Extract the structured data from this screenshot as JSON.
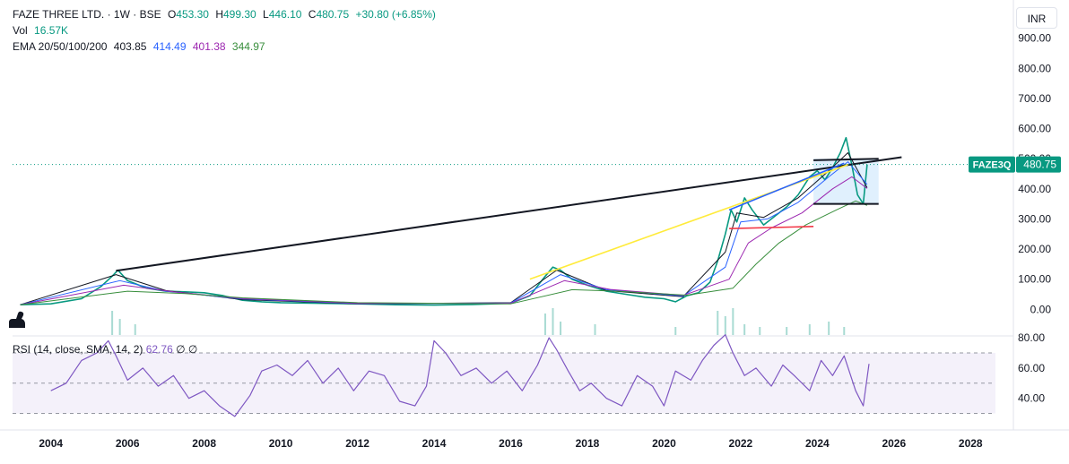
{
  "header": {
    "symbol_title": "FAZE THREE LTD. · 1W · BSE",
    "open_label": "O",
    "open": "453.30",
    "high_label": "H",
    "high": "499.30",
    "low_label": "L",
    "low": "446.10",
    "close_label": "C",
    "close": "480.75",
    "change": "+30.80 (+6.85%)",
    "vol_label": "Vol",
    "vol": "16.57K",
    "ema_label": "EMA 20/50/100/200",
    "ema_values": [
      "403.85",
      "414.49",
      "401.38",
      "344.97"
    ],
    "ema_colors": [
      "#131722",
      "#2962ff",
      "#9c27b0",
      "#388e3c"
    ]
  },
  "currency_button": "INR",
  "price_tag": {
    "symbol": "FAZE3Q",
    "value": "480.75",
    "color": "#089981"
  },
  "rsi_legend": {
    "label": "RSI (14, close, SMA, 14, 2)",
    "value": "62.76",
    "extra1": "∅",
    "extra2": "∅"
  },
  "colors": {
    "up": "#089981",
    "down": "#f23645",
    "rsi": "#7e57c2",
    "rsi_band": "#ede7f6",
    "trend_black": "#131722",
    "trend_yellow": "#ffeb3b",
    "trend_blue": "#2962ff",
    "trend_red": "#f23645",
    "range_fill": "#bbdefb"
  },
  "chart_data": [
    {
      "type": "line",
      "title": "FAZE THREE LTD. · 1W · BSE",
      "y_axis_labels": [
        "900.00",
        "800.00",
        "700.00",
        "600.00",
        "500.00",
        "400.00",
        "300.00",
        "200.00",
        "100.00",
        "0.00"
      ],
      "ylim": [
        -20,
        920
      ],
      "x_axis_labels": [
        "2004",
        "2006",
        "2008",
        "2010",
        "2012",
        "2014",
        "2016",
        "2018",
        "2020",
        "2022",
        "2024",
        "2026",
        "2028"
      ],
      "xlim": [
        2003.0,
        2029.0
      ],
      "series": [
        {
          "key": "close",
          "x": [
            2003.2,
            2004.0,
            2004.8,
            2005.3,
            2005.6,
            2005.75,
            2006.0,
            2006.5,
            2007.0,
            2007.5,
            2008.0,
            2008.5,
            2009.0,
            2009.5,
            2010.0,
            2011.0,
            2012.0,
            2013.0,
            2014.0,
            2015.0,
            2016.0,
            2016.5,
            2016.9,
            2017.1,
            2017.3,
            2017.6,
            2018.0,
            2018.5,
            2019.0,
            2019.5,
            2020.0,
            2020.3,
            2020.6,
            2020.9,
            2021.2,
            2021.4,
            2021.6,
            2021.75,
            2021.9,
            2022.1,
            2022.3,
            2022.6,
            2022.9,
            2023.2,
            2023.5,
            2023.8,
            2024.0,
            2024.2,
            2024.4,
            2024.6,
            2024.75,
            2024.9,
            2025.05,
            2025.2,
            2025.3
          ],
          "y": [
            15,
            18,
            35,
            75,
            110,
            130,
            95,
            70,
            60,
            58,
            55,
            45,
            30,
            25,
            22,
            20,
            18,
            15,
            14,
            16,
            20,
            45,
            110,
            140,
            130,
            100,
            80,
            60,
            50,
            40,
            35,
            25,
            45,
            55,
            90,
            160,
            250,
            330,
            290,
            370,
            330,
            280,
            310,
            340,
            380,
            440,
            460,
            430,
            470,
            520,
            570,
            480,
            380,
            350,
            480.75
          ]
        },
        {
          "key": "ema_20",
          "x": [
            2003.2,
            2005.7,
            2007,
            2009,
            2012,
            2016,
            2017.2,
            2018.5,
            2020.5,
            2021.6,
            2021.9,
            2022.6,
            2023.5,
            2024.3,
            2024.8,
            2025.3
          ],
          "y": [
            15,
            115,
            62,
            32,
            18,
            22,
            130,
            62,
            42,
            190,
            320,
            305,
            370,
            460,
            520,
            403.85
          ]
        },
        {
          "key": "ema_50",
          "x": [
            2003.2,
            2005.8,
            2007,
            2009,
            2012,
            2016,
            2017.3,
            2018.5,
            2020.5,
            2021.6,
            2022.0,
            2022.7,
            2023.5,
            2024.3,
            2024.8,
            2025.3
          ],
          "y": [
            15,
            95,
            60,
            34,
            19,
            21,
            115,
            65,
            44,
            140,
            290,
            300,
            355,
            440,
            490,
            414.49
          ]
        },
        {
          "key": "ema_100",
          "x": [
            2003.2,
            2005.9,
            2007.2,
            2009,
            2012,
            2016,
            2017.4,
            2018.6,
            2020.5,
            2021.7,
            2022.2,
            2022.8,
            2023.6,
            2024.4,
            2024.9,
            2025.3
          ],
          "y": [
            15,
            80,
            58,
            36,
            20,
            20,
            95,
            66,
            46,
            100,
            220,
            270,
            320,
            400,
            440,
            401.38
          ]
        },
        {
          "key": "ema_200",
          "x": [
            2003.2,
            2006.0,
            2007.5,
            2009,
            2012,
            2016,
            2017.6,
            2018.8,
            2020.6,
            2021.8,
            2022.4,
            2023.0,
            2023.7,
            2024.5,
            2025.0,
            2025.3
          ],
          "y": [
            15,
            60,
            52,
            38,
            22,
            18,
            65,
            60,
            47,
            70,
            150,
            220,
            280,
            330,
            360,
            344.97
          ]
        }
      ],
      "drawings": [
        {
          "name": "trend-long",
          "color": "#131722",
          "x": [
            2005.7,
            2026.2
          ],
          "y": [
            128,
            505
          ]
        },
        {
          "name": "trend-yellow",
          "color": "#ffeb3b",
          "x": [
            2016.5,
            2024.8
          ],
          "y": [
            100,
            480
          ]
        },
        {
          "name": "trend-blue",
          "color": "#2962ff",
          "x": [
            2021.7,
            2024.7
          ],
          "y": [
            330,
            485
          ]
        },
        {
          "name": "support-red",
          "color": "#f23645",
          "x": [
            2021.7,
            2023.9
          ],
          "y": [
            268,
            275
          ]
        },
        {
          "name": "range-top",
          "color": "#131722",
          "x": [
            2023.9,
            2025.6
          ],
          "y": [
            495,
            500
          ]
        },
        {
          "name": "range-bottom",
          "color": "#131722",
          "x": [
            2023.9,
            2025.6
          ],
          "y": [
            350,
            350
          ]
        }
      ],
      "volume": {
        "x": [
          2005.6,
          2005.8,
          2006.2,
          2016.9,
          2017.1,
          2017.3,
          2018.2,
          2020.3,
          2021.4,
          2021.6,
          2021.8,
          2022.1,
          2022.5,
          2023.2,
          2023.8,
          2024.3,
          2024.7
        ],
        "v": [
          0.9,
          0.6,
          0.4,
          0.8,
          1.0,
          0.5,
          0.4,
          0.3,
          0.9,
          0.7,
          1.0,
          0.4,
          0.3,
          0.3,
          0.4,
          0.5,
          0.3
        ]
      }
    },
    {
      "type": "line",
      "title": "RSI (14, close, SMA, 14, 2)",
      "y_axis_labels": [
        "80.00",
        "60.00",
        "40.00"
      ],
      "ylim": [
        25,
        83
      ],
      "band": [
        30,
        70
      ],
      "midline": 50,
      "series": [
        {
          "key": "rsi",
          "x": [
            2004.0,
            2004.4,
            2004.8,
            2005.2,
            2005.5,
            2005.7,
            2006.0,
            2006.4,
            2006.8,
            2007.2,
            2007.6,
            2008.0,
            2008.4,
            2008.8,
            2009.2,
            2009.5,
            2009.9,
            2010.3,
            2010.7,
            2011.1,
            2011.5,
            2011.9,
            2012.3,
            2012.7,
            2013.1,
            2013.5,
            2013.8,
            2014.0,
            2014.3,
            2014.7,
            2015.1,
            2015.5,
            2015.9,
            2016.3,
            2016.7,
            2017.0,
            2017.2,
            2017.5,
            2017.8,
            2018.1,
            2018.5,
            2018.9,
            2019.3,
            2019.7,
            2020.0,
            2020.3,
            2020.7,
            2021.0,
            2021.3,
            2021.6,
            2021.8,
            2022.1,
            2022.4,
            2022.8,
            2023.1,
            2023.4,
            2023.8,
            2024.1,
            2024.4,
            2024.7,
            2025.0,
            2025.2,
            2025.35
          ],
          "y": [
            45,
            50,
            65,
            70,
            78,
            68,
            52,
            60,
            48,
            55,
            40,
            45,
            35,
            28,
            42,
            58,
            62,
            55,
            65,
            50,
            60,
            45,
            58,
            55,
            38,
            35,
            48,
            78,
            70,
            55,
            60,
            50,
            58,
            45,
            62,
            80,
            72,
            58,
            45,
            50,
            40,
            35,
            55,
            48,
            35,
            58,
            52,
            65,
            75,
            82,
            70,
            55,
            60,
            48,
            62,
            55,
            45,
            65,
            55,
            68,
            45,
            35,
            62.76
          ]
        }
      ]
    }
  ]
}
